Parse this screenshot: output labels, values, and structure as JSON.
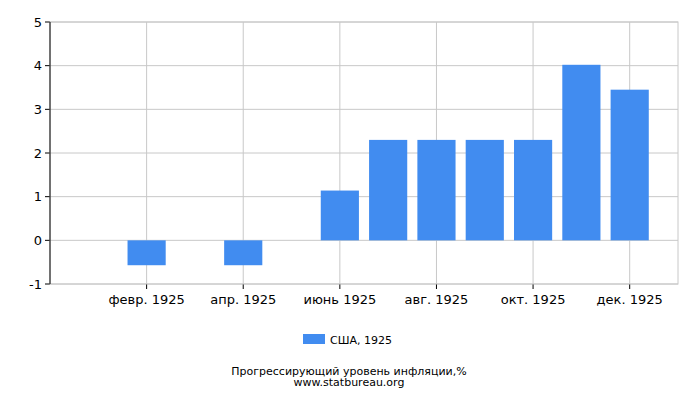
{
  "chart_data": {
    "type": "bar",
    "title": "Прогрессирующий уровень инфляции,%",
    "subtitle": "www.statbureau.org",
    "categories": [
      null,
      "февр. 1925",
      null,
      "апр. 1925",
      null,
      "июнь 1925",
      null,
      "авг. 1925",
      null,
      "окт. 1925",
      null,
      "дек. 1925"
    ],
    "series": [
      {
        "name": "США, 1925",
        "color": "#418cf0",
        "values": [
          0,
          -0.57,
          0,
          -0.57,
          0,
          1.14,
          2.3,
          2.3,
          2.3,
          2.3,
          4.02,
          3.45
        ]
      }
    ],
    "ylim": [
      -1,
      5
    ],
    "yticks": [
      -1,
      0,
      1,
      2,
      3,
      4,
      5
    ],
    "grid": true,
    "legend": "bottom"
  }
}
